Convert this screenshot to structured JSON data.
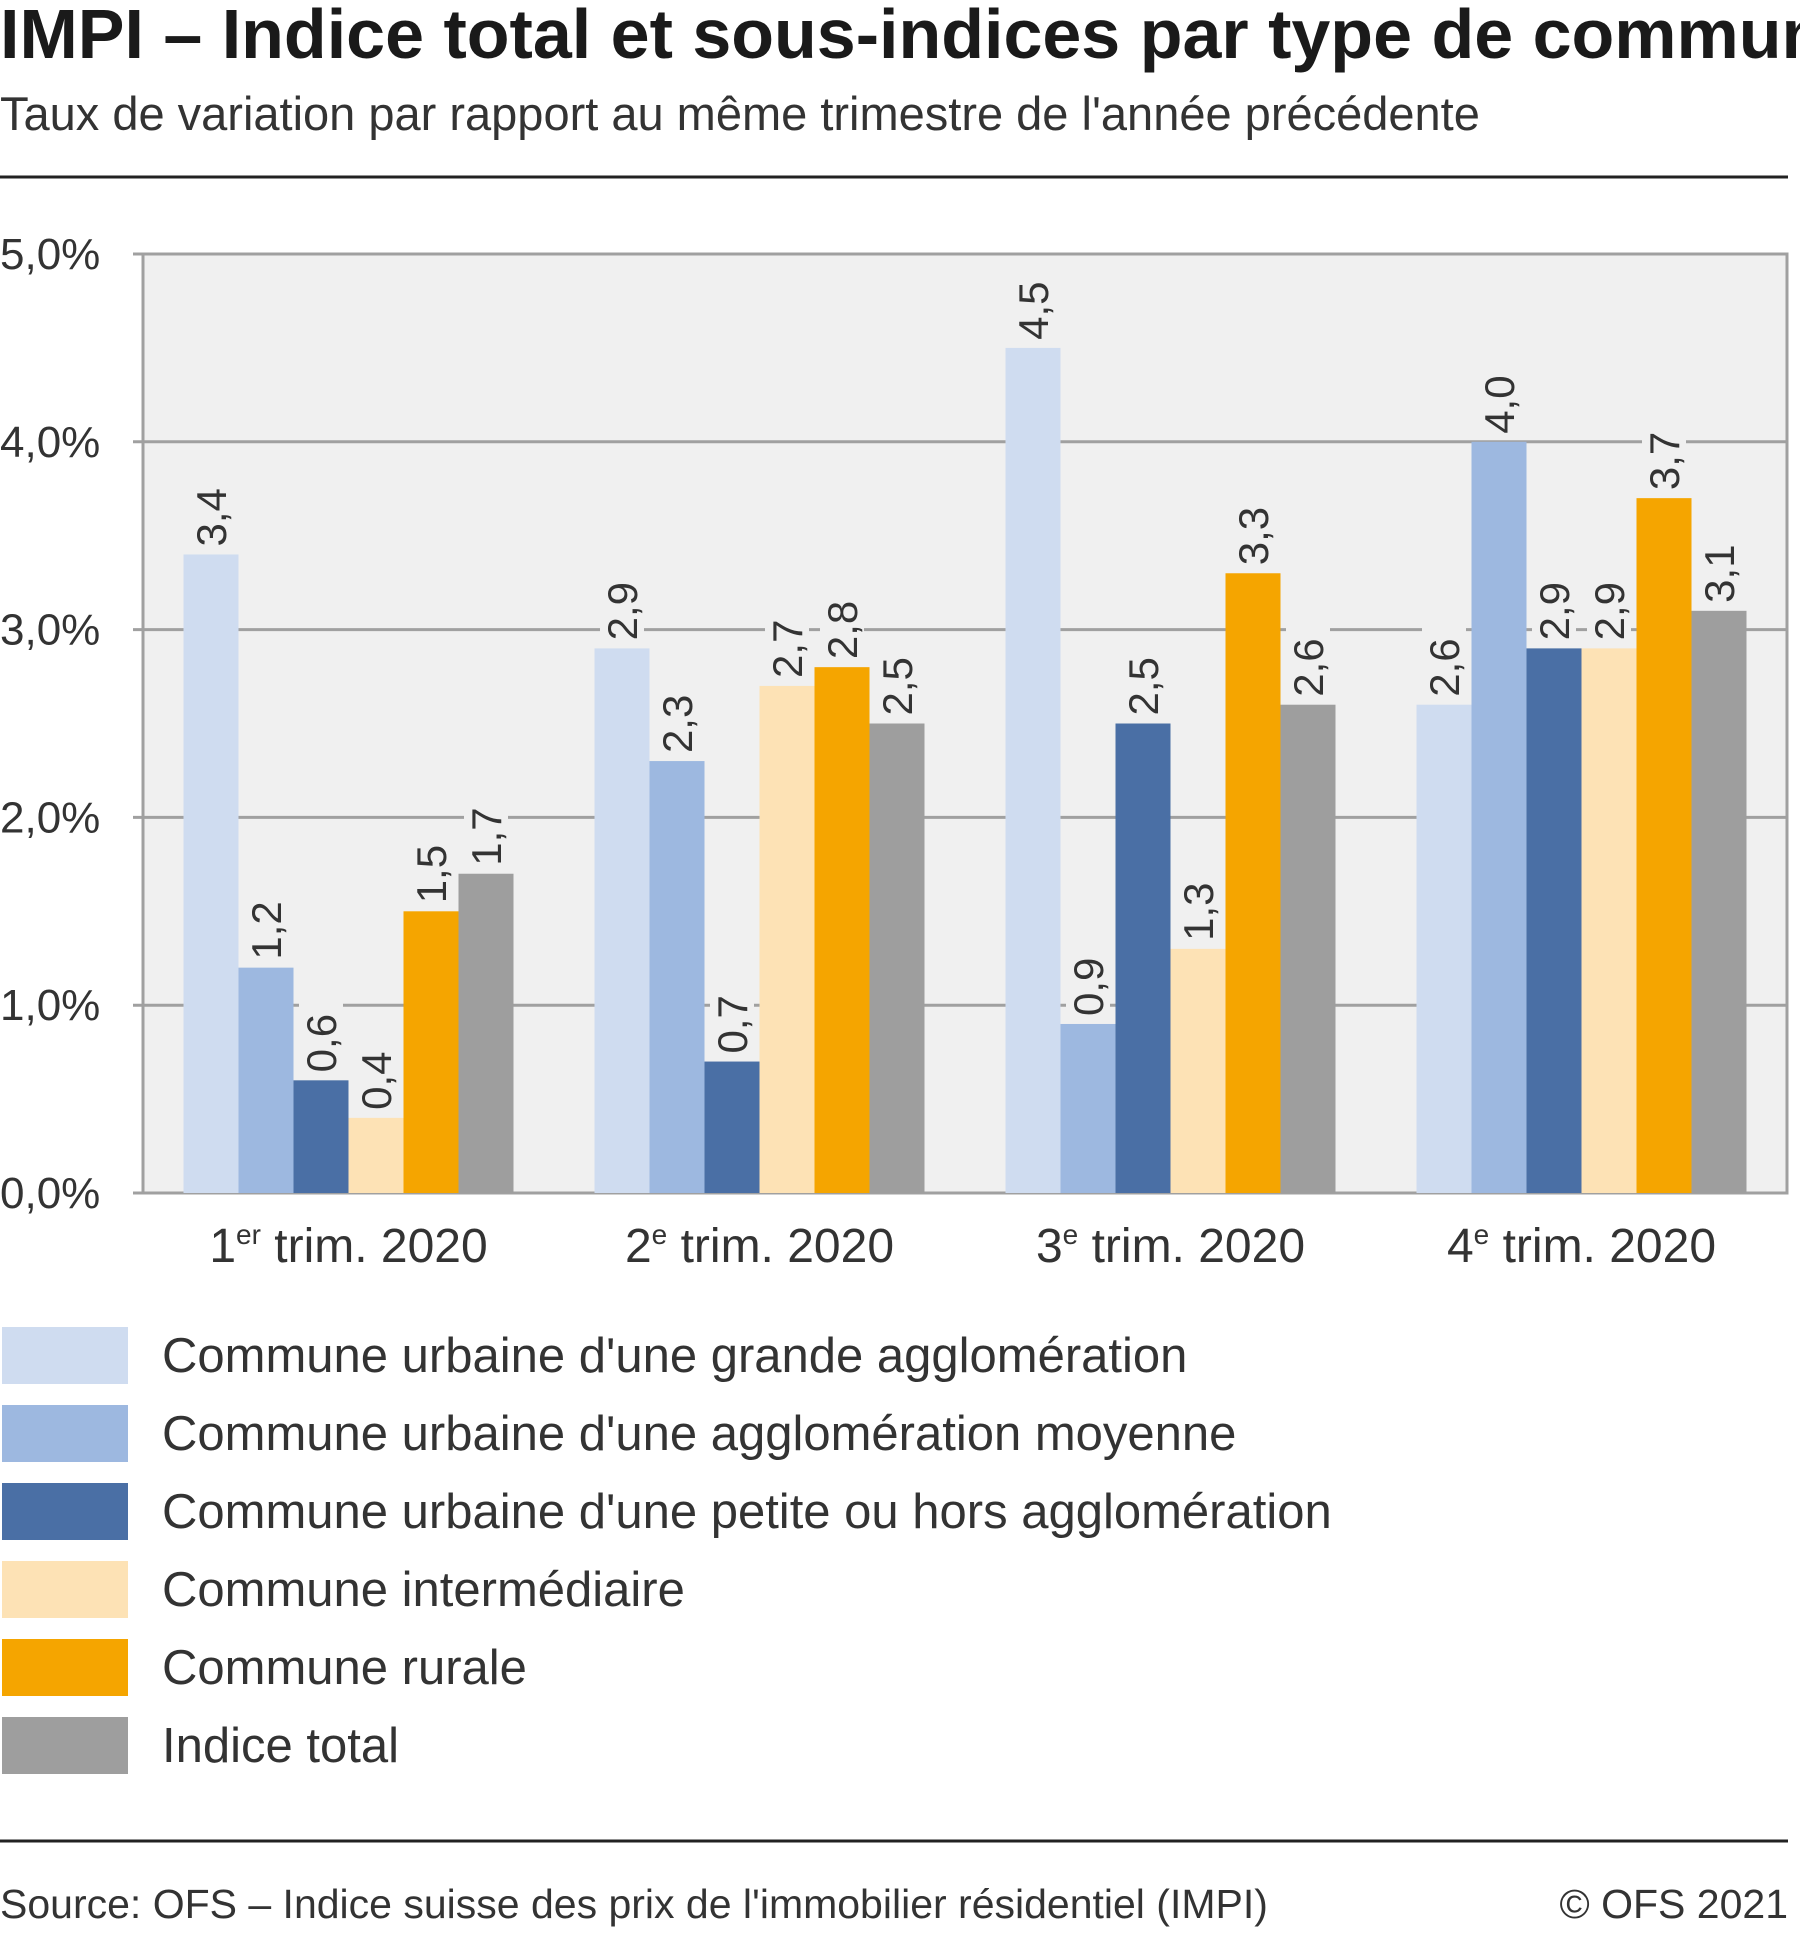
{
  "chart_data": {
    "type": "bar",
    "title": "IMPI – Indice total et sous-indices par type de communes",
    "subtitle": "Taux de variation par rapport au même trimestre de l'année précédente",
    "xlabel": "",
    "ylabel": "",
    "ylim": [
      0,
      5
    ],
    "yticks": [
      "0,0%",
      "1,0%",
      "2,0%",
      "3,0%",
      "4,0%",
      "5,0%"
    ],
    "grid": true,
    "legend_position": "bottom",
    "categories": [
      {
        "num": "1",
        "sup": "er",
        "rest": " trim. 2020"
      },
      {
        "num": "2",
        "sup": "e",
        "rest": " trim. 2020"
      },
      {
        "num": "3",
        "sup": "e",
        "rest": " trim. 2020"
      },
      {
        "num": "4",
        "sup": "e",
        "rest": " trim. 2020"
      }
    ],
    "series": [
      {
        "name": "Commune urbaine d'une grande agglomération",
        "color": "#cfdcf0",
        "values": [
          3.4,
          2.9,
          4.5,
          2.6
        ]
      },
      {
        "name": "Commune urbaine d'une agglomération moyenne",
        "color": "#9db8e0",
        "values": [
          1.2,
          2.3,
          0.9,
          4.0
        ]
      },
      {
        "name": "Commune urbaine d'une petite ou hors agglomération",
        "color": "#4a6fa5",
        "values": [
          0.6,
          0.7,
          2.5,
          2.9
        ]
      },
      {
        "name": "Commune intermédiaire",
        "color": "#fde2b5",
        "values": [
          0.4,
          2.7,
          1.3,
          2.9
        ]
      },
      {
        "name": "Commune rurale",
        "color": "#f5a500",
        "values": [
          1.5,
          2.8,
          3.3,
          3.7
        ]
      },
      {
        "name": "Indice total",
        "color": "#9e9e9e",
        "values": [
          1.7,
          2.5,
          2.6,
          3.1
        ]
      }
    ],
    "source": "Source: OFS – Indice suisse des prix de l'immobilier résidentiel (IMPI)",
    "copyright": "© OFS 2021"
  }
}
